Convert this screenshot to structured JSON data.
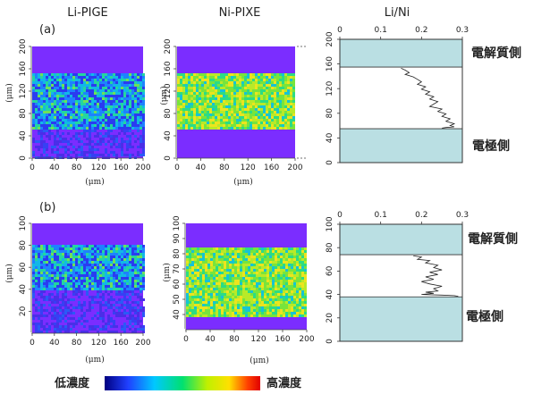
{
  "titles": {
    "left": "Li-PIGE",
    "middle": "Ni-PIXE",
    "right": "Li/Ni"
  },
  "panel_labels": {
    "a": "(a)",
    "b": "(b)"
  },
  "unit": "(μm)",
  "side_labels": {
    "electrolyte": "電解質側",
    "electrode": "電極側"
  },
  "colorbar": {
    "low": "低濃度",
    "high": "高濃度",
    "colors": [
      "#000080",
      "#2040ff",
      "#00c8ff",
      "#00e070",
      "#c0f000",
      "#ffe000",
      "#ff4000",
      "#e00000"
    ]
  },
  "colors": {
    "background_purple": "#7B2DFF",
    "layer_fill": "#BADFE3",
    "accent": "#222222"
  },
  "chart_data": [
    {
      "type": "heatmap",
      "panel": "(a)",
      "title": "Li-PIGE",
      "xlabel": "(μm)",
      "ylabel": "(μm)",
      "xlim": [
        0,
        200
      ],
      "ylim": [
        0,
        200
      ],
      "x_ticks": [
        0,
        40,
        80,
        120,
        160,
        200
      ],
      "y_ticks": [
        0,
        40,
        80,
        120,
        160,
        200
      ],
      "band": [
        55,
        155
      ],
      "level": "medium"
    },
    {
      "type": "heatmap",
      "panel": "(a)",
      "title": "Ni-PIXE",
      "xlabel": "(μm)",
      "ylabel": "(μm)",
      "xlim": [
        0,
        200
      ],
      "ylim": [
        0,
        200
      ],
      "x_ticks": [
        0,
        40,
        80,
        120,
        160,
        200
      ],
      "y_ticks": [
        0,
        40,
        80,
        120,
        160,
        200
      ],
      "band": [
        55,
        155
      ],
      "level": "high"
    },
    {
      "type": "line",
      "panel": "(a)",
      "title": "Li/Ni",
      "xlim": [
        0,
        0.3
      ],
      "ylim": [
        0,
        200
      ],
      "x_ticks": [
        0,
        0.1,
        0.2,
        0.3
      ],
      "y_ticks": [
        0,
        40,
        80,
        120,
        160,
        200
      ],
      "electrolyte_band": [
        155,
        200
      ],
      "electrode_band": [
        0,
        55
      ],
      "x": [
        0.15,
        0.16,
        0.17,
        0.16,
        0.18,
        0.19,
        0.2,
        0.19,
        0.21,
        0.2,
        0.22,
        0.21,
        0.23,
        0.22,
        0.24,
        0.23,
        0.22,
        0.25,
        0.24,
        0.26,
        0.25,
        0.27,
        0.26,
        0.28,
        0.27,
        0.28,
        0.26,
        0.25
      ],
      "y": [
        153,
        150,
        146,
        143,
        139,
        135,
        131,
        127,
        123,
        119,
        115,
        111,
        107,
        103,
        99,
        95,
        91,
        87,
        83,
        79,
        75,
        71,
        67,
        63,
        60,
        58,
        57,
        56
      ]
    },
    {
      "type": "heatmap",
      "panel": "(b)",
      "title": "Li-PIGE",
      "xlabel": "(μm)",
      "ylabel": "(μm)",
      "xlim": [
        0,
        200
      ],
      "ylim": [
        0,
        100
      ],
      "x_ticks": [
        0,
        40,
        80,
        120,
        160,
        200
      ],
      "y_ticks": [
        20,
        40,
        60,
        80,
        100
      ],
      "band": [
        40,
        80
      ],
      "level": "medium"
    },
    {
      "type": "heatmap",
      "panel": "(b)",
      "title": "Ni-PIXE",
      "xlabel": "(μm)",
      "ylabel": "(μm)",
      "xlim": [
        0,
        200
      ],
      "ylim": [
        30,
        100
      ],
      "x_ticks": [
        0,
        40,
        80,
        120,
        160,
        200
      ],
      "y_ticks": [
        40,
        50,
        60,
        70,
        80,
        90,
        100
      ],
      "band": [
        40,
        85
      ],
      "level": "high"
    },
    {
      "type": "line",
      "panel": "(b)",
      "title": "Li/Ni",
      "xlim": [
        0,
        0.3
      ],
      "ylim": [
        0,
        100
      ],
      "x_ticks": [
        0,
        0.1,
        0.2,
        0.3
      ],
      "y_ticks": [
        0,
        20,
        40,
        60,
        80,
        100
      ],
      "electrolyte_band": [
        74,
        100
      ],
      "electrode_band": [
        0,
        38
      ],
      "x": [
        0.18,
        0.2,
        0.19,
        0.22,
        0.21,
        0.24,
        0.23,
        0.25,
        0.22,
        0.24,
        0.21,
        0.23,
        0.2,
        0.22,
        0.25,
        0.23,
        0.24,
        0.21,
        0.23,
        0.2,
        0.25,
        0.28,
        0.29
      ],
      "y": [
        73,
        72,
        70,
        69,
        67,
        65,
        63,
        61,
        59,
        57,
        55,
        53,
        51,
        49,
        47,
        45,
        43,
        42,
        41,
        40,
        39.5,
        39,
        38.5
      ]
    }
  ]
}
